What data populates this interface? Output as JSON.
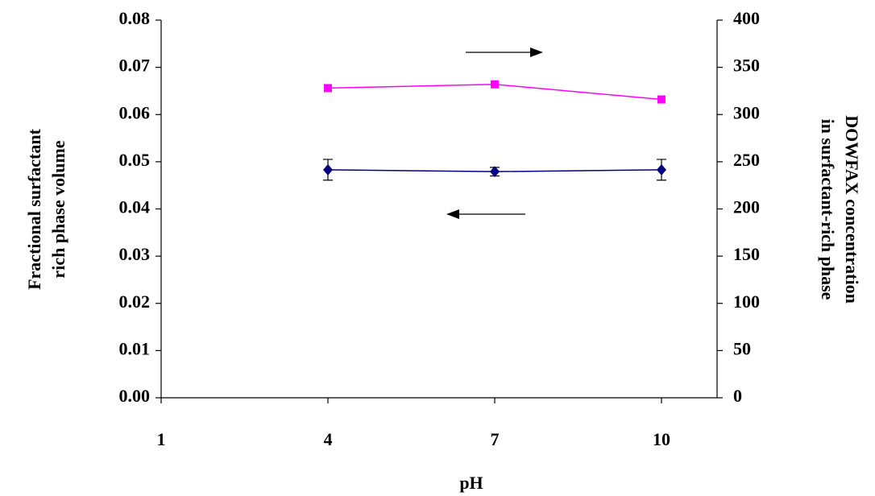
{
  "chart_data": {
    "type": "line",
    "xlabel": "pH",
    "ylabel": [
      "Fractional surfactant",
      "rich phase volume"
    ],
    "y2label": [
      "DOWFAX concentration",
      "in surfactant-rich phase"
    ],
    "x": [
      4,
      7,
      10
    ],
    "xlim": [
      1,
      11
    ],
    "xticks": [
      1,
      4,
      7,
      10
    ],
    "ylim": [
      0,
      0.08
    ],
    "yticks": [
      {
        "value": 0,
        "label": "0.00"
      },
      0.01,
      0.02,
      0.03,
      0.04,
      0.05,
      0.06,
      0.07,
      0.08
    ],
    "y2lim": [
      0,
      400
    ],
    "y2ticks": [
      0,
      50,
      100,
      150,
      200,
      250,
      300,
      350,
      400
    ],
    "series": [
      {
        "color": "#000080",
        "marker": "diamond",
        "values": [
          0.0483,
          0.0479,
          0.0483
        ],
        "errors": [
          0.0022,
          0.0009,
          0.0022
        ]
      },
      {
        "color": "#ff00ff",
        "marker": "square",
        "axis": "y2",
        "values": [
          328,
          332,
          316
        ]
      }
    ]
  }
}
